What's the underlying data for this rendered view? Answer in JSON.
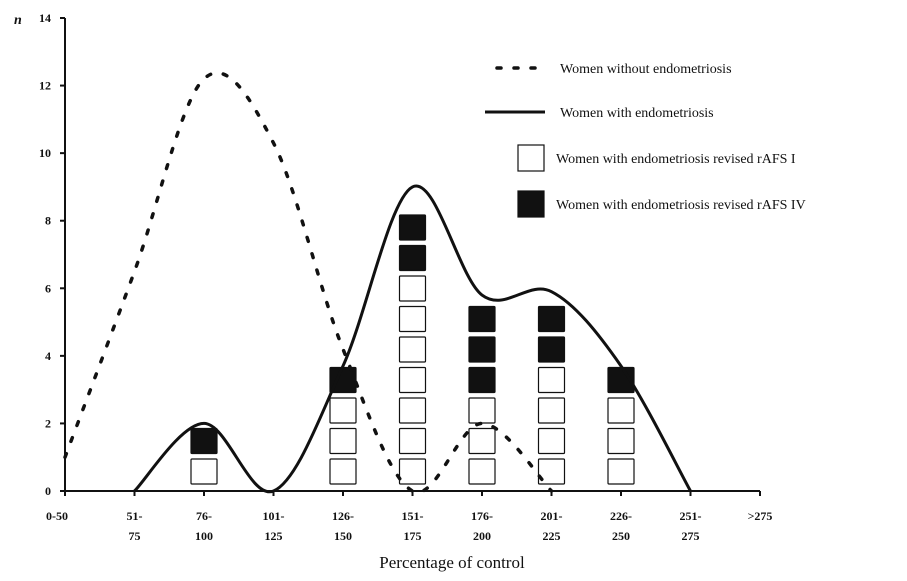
{
  "chart_data": {
    "type": "line",
    "ylabel": "n",
    "xlabel": "Percentage of control",
    "ylim": [
      0,
      14
    ],
    "yticks": [
      0,
      2,
      4,
      6,
      8,
      10,
      12,
      14
    ],
    "categories": [
      {
        "top": "0-50",
        "bottom": ""
      },
      {
        "top": "51-",
        "bottom": "75"
      },
      {
        "top": "76-",
        "bottom": "100"
      },
      {
        "top": "101-",
        "bottom": "125"
      },
      {
        "top": "126-",
        "bottom": "150"
      },
      {
        "top": "151-",
        "bottom": "175"
      },
      {
        "top": "176-",
        "bottom": "200"
      },
      {
        "top": "201-",
        "bottom": "225"
      },
      {
        "top": "226-",
        "bottom": "250"
      },
      {
        "top": "251-",
        "bottom": "275"
      },
      {
        "top": ">275",
        "bottom": ""
      }
    ],
    "series": [
      {
        "name": "Women without endometriosis",
        "style": "dotted",
        "points": [
          [
            0,
            1
          ],
          [
            1,
            6.5
          ],
          [
            2,
            12.2
          ],
          [
            3,
            10.3
          ],
          [
            4,
            4.2
          ],
          [
            5,
            0
          ],
          [
            6,
            2
          ],
          [
            7,
            0
          ]
        ]
      },
      {
        "name": "Women with endometriosis",
        "style": "solid",
        "points": [
          [
            1,
            0
          ],
          [
            2,
            2
          ],
          [
            3,
            0
          ],
          [
            4,
            3.7
          ],
          [
            5,
            9
          ],
          [
            6,
            5.8
          ],
          [
            7,
            5.9
          ],
          [
            8,
            3.7
          ],
          [
            9,
            0
          ]
        ]
      }
    ],
    "stacked_markers": [
      {
        "name": "Women with endometriosis revised rAFS I",
        "fill": "#ffffff",
        "counts": [
          0,
          0,
          1,
          0,
          3,
          7,
          3,
          4,
          3,
          0,
          0
        ]
      },
      {
        "name": "Women with endometriosis revised rAFS IV",
        "fill": "#111111",
        "counts": [
          0,
          0,
          1,
          0,
          1,
          2,
          3,
          2,
          1,
          0,
          0
        ]
      }
    ],
    "legend_position": "top-right",
    "grid": false
  }
}
